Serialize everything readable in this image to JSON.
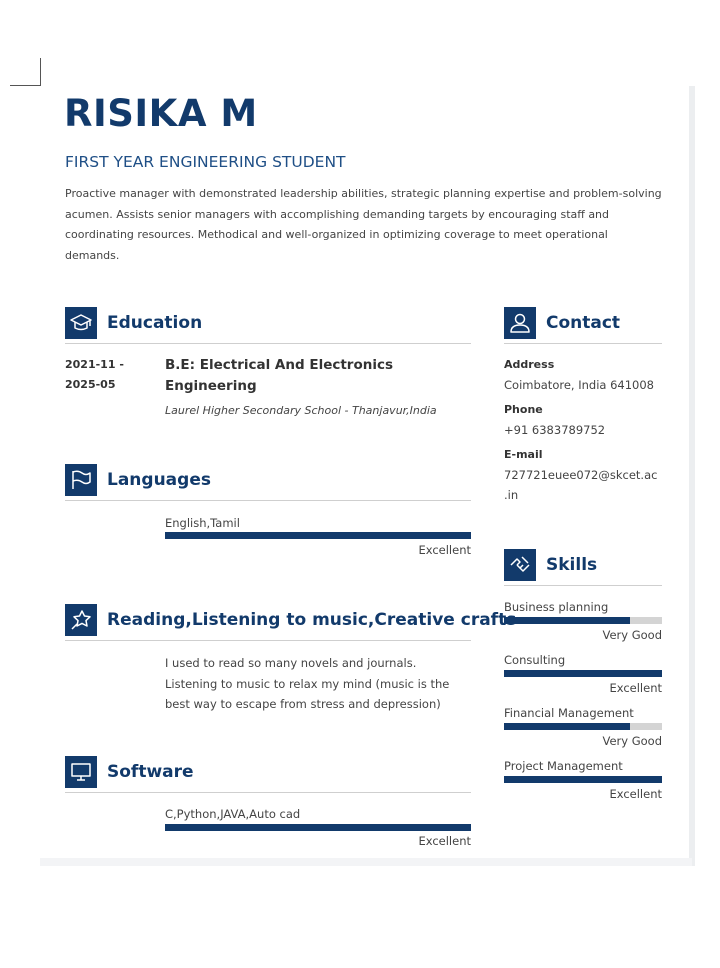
{
  "name": "RISIKA M",
  "headline": "FIRST YEAR ENGINEERING STUDENT",
  "summary": "Proactive manager with demonstrated leadership abilities, strategic planning expertise and problem-solving acumen. Assists senior managers with accomplishing demanding targets by encouraging staff and coordinating resources. Methodical and well-organized in optimizing coverage to meet operational demands.",
  "education": {
    "title": "Education",
    "date_start": "2021-11 -",
    "date_end": "2025-05",
    "degree_line1": "B.E: Electrical And Electronics",
    "degree_line2": "Engineering",
    "school": "Laurel Higher Secondary School - Thanjavur,India"
  },
  "languages": {
    "title": "Languages",
    "item": "English,Tamil",
    "level": 1.0,
    "rating": "Excellent"
  },
  "hobbies": {
    "title": "Reading,Listening to music,Creative crafts",
    "text": "I used to read so many novels and journals. Listening to music to relax my mind (music is the best way to escape from stress and depression)"
  },
  "software": {
    "title": "Software",
    "item": "C,Python,JAVA,Auto cad",
    "level": 1.0,
    "rating": "Excellent"
  },
  "contact": {
    "title": "Contact",
    "address_label": "Address",
    "address": "Coimbatore, India 641008",
    "phone_label": "Phone",
    "phone": "+91 6383789752",
    "email_label": "E-mail",
    "email_line1": "727721euee072@skcet.ac",
    "email_line2": ".in"
  },
  "skills": {
    "title": "Skills",
    "items": [
      {
        "name": "Business planning",
        "level": 0.8,
        "rating": "Very Good"
      },
      {
        "name": "Consulting",
        "level": 1.0,
        "rating": "Excellent"
      },
      {
        "name": "Financial Management",
        "level": 0.8,
        "rating": "Very Good"
      },
      {
        "name": "Project Management",
        "level": 1.0,
        "rating": "Excellent"
      }
    ]
  },
  "colors": {
    "accent": "#123a6b",
    "bar_track": "#d4d4d4"
  },
  "icons": {
    "education": "graduation-cap-icon",
    "languages": "flag-icon",
    "hobbies": "star-pin-icon",
    "software": "monitor-icon",
    "contact": "person-icon",
    "skills": "hands-icon"
  }
}
